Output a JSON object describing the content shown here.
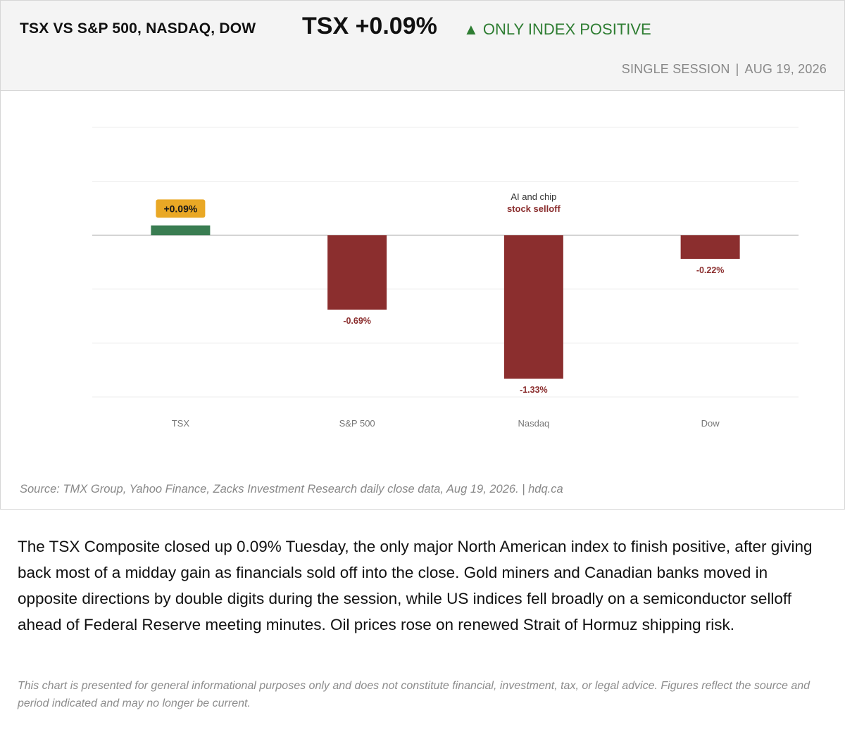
{
  "header": {
    "title": "TSX VS S&P 500, NASDAQ, DOW",
    "headline_value": "TSX +0.09%",
    "badge_icon": "triangle-up-icon",
    "badge_text": "ONLY INDEX POSITIVE",
    "session": "SINGLE SESSION",
    "separator": "|",
    "date": "AUG 19, 2026"
  },
  "colors": {
    "positive": "#3a7d52",
    "negative": "#8b2e2e",
    "highlight": "#e9a825",
    "badge_text": "#2e7d32"
  },
  "chart_data": {
    "type": "bar",
    "categories": [
      "TSX",
      "S&P 500",
      "Nasdaq",
      "Dow"
    ],
    "values": [
      0.09,
      -0.69,
      -1.33,
      -0.22
    ],
    "data_labels": [
      "+0.09%",
      "-0.69%",
      "-1.33%",
      "-0.22%"
    ],
    "ylim": [
      -1.5,
      1.0
    ],
    "grid": true,
    "highlighted_category": "TSX",
    "annotation": {
      "category": "Nasdaq",
      "line1": "AI and chip",
      "line2": "stock selloff"
    }
  },
  "source": "Source: TMX Group, Yahoo Finance, Zacks Investment Research daily close data, Aug 19, 2026.  |  hdq.ca",
  "body_text": "The TSX Composite closed up 0.09% Tuesday, the only major North American index to finish positive, after giving back most of a midday gain as financials sold off into the close. Gold miners and Canadian banks moved in opposite directions by double digits during the session, while US indices fell broadly on a semiconductor selloff ahead of Federal Reserve meeting minutes. Oil prices rose on renewed Strait of Hormuz shipping risk.",
  "disclaimer": "This chart is presented for general informational purposes only and does not constitute financial, investment, tax, or legal advice. Figures reflect the source and period indicated and may no longer be current."
}
